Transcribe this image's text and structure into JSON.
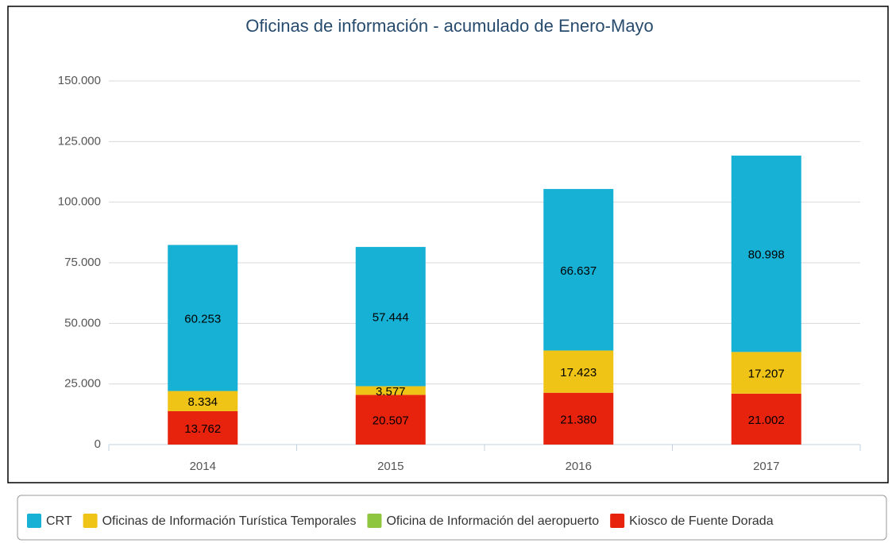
{
  "chart_data": {
    "type": "stacked_bar",
    "title": "Oficinas de información - acumulado de Enero-Mayo",
    "categories": [
      "2014",
      "2015",
      "2016",
      "2017"
    ],
    "series": [
      {
        "name": "CRT",
        "color": "#17b1d5",
        "values": [
          60253,
          57444,
          66637,
          80998
        ],
        "value_labels": [
          "60.253",
          "57.444",
          "66.637",
          "80.998"
        ]
      },
      {
        "name": "Oficinas de Información Turística Temporales",
        "color": "#efc417",
        "values": [
          8334,
          3577,
          17423,
          17207
        ],
        "value_labels": [
          "8.334",
          "3.577",
          "17.423",
          "17.207"
        ]
      },
      {
        "name": "Oficina de Información del aeropuerto",
        "color": "#8ec63f",
        "values": [
          0,
          0,
          0,
          0
        ]
      },
      {
        "name": "Kiosco de Fuente Dorada",
        "color": "#e8230d",
        "values": [
          13762,
          20507,
          21380,
          21002
        ],
        "value_labels": [
          "13.762",
          "20.507",
          "21.380",
          "21.002"
        ]
      }
    ],
    "stack_order": "reverse",
    "ylim": [
      0,
      150000
    ],
    "yticks": [
      0,
      {
        "value": 25000,
        "label": "25.000"
      },
      {
        "value": 50000,
        "label": "50.000"
      },
      {
        "value": 75000,
        "label": "75.000"
      },
      {
        "value": 100000,
        "label": "100.000"
      },
      {
        "value": 125000,
        "label": "125.000"
      },
      {
        "value": 150000,
        "label": "150.000"
      }
    ],
    "grid": true,
    "legend": "bottom"
  }
}
